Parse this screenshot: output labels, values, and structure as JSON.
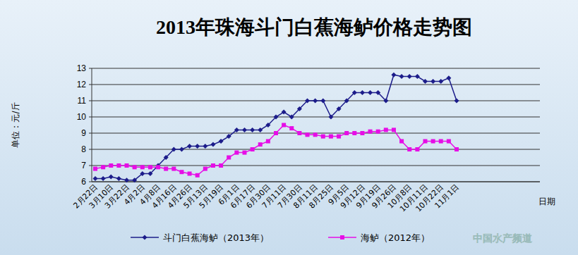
{
  "chart_data": {
    "type": "line",
    "title": "2013年珠海斗门白蕉海鲈价格走势图",
    "y_label": "单位：元/斤",
    "x_label": "日期",
    "annotations": [
      "中国水产频道"
    ],
    "categories": [
      "2月22日",
      null,
      "3月10日",
      null,
      "3月22日",
      null,
      "4月2日",
      null,
      "4月8日",
      null,
      "4月16日",
      null,
      "4月26日",
      null,
      "5月13日",
      null,
      "5月19日",
      null,
      "6月1日",
      null,
      "6月17日",
      null,
      "6月30日",
      null,
      "7月11日",
      null,
      "7月30日",
      null,
      "8月11日",
      null,
      "8月25日",
      null,
      "9月5日",
      null,
      "9月12日",
      null,
      "9月19日",
      null,
      "9月26日",
      null,
      "10月8日",
      null,
      "10月11日",
      null,
      "10月22日",
      null,
      "11月1日"
    ],
    "series": [
      {
        "name": "斗门白蕉海鲈（2013年）",
        "color": "#1c1c8a",
        "marker": "diamond",
        "values": [
          6.2,
          6.2,
          6.3,
          6.2,
          6.1,
          6.1,
          6.5,
          6.5,
          7.0,
          7.5,
          8.0,
          8.0,
          8.2,
          8.2,
          8.2,
          8.3,
          8.5,
          8.8,
          9.2,
          9.2,
          9.2,
          9.2,
          9.5,
          10.0,
          10.3,
          10.0,
          10.5,
          11.0,
          11.0,
          11.0,
          10.0,
          10.5,
          11.0,
          11.5,
          11.5,
          11.5,
          11.5,
          11.0,
          12.6,
          12.5,
          12.5,
          12.5,
          12.2,
          12.2,
          12.2,
          12.4,
          11.0
        ]
      },
      {
        "name": "海鲈（2012年）",
        "color": "#e60ee6",
        "marker": "square",
        "values": [
          6.8,
          6.9,
          7.0,
          7.0,
          7.0,
          6.9,
          6.9,
          6.9,
          6.9,
          6.8,
          6.8,
          6.6,
          6.5,
          6.4,
          6.8,
          7.0,
          7.0,
          7.5,
          7.8,
          7.8,
          8.0,
          8.3,
          8.5,
          9.0,
          9.5,
          9.3,
          9.0,
          8.9,
          8.9,
          8.8,
          8.8,
          8.8,
          9.0,
          9.0,
          9.0,
          9.1,
          9.1,
          9.2,
          9.2,
          8.5,
          8.0,
          8.0,
          8.5,
          8.5,
          8.5,
          8.5,
          8.0
        ]
      }
    ],
    "ylim": [
      6,
      13
    ],
    "yticks": [
      6,
      7,
      8,
      9,
      10,
      11,
      12,
      13
    ],
    "grid": true,
    "legend": "bottom"
  }
}
